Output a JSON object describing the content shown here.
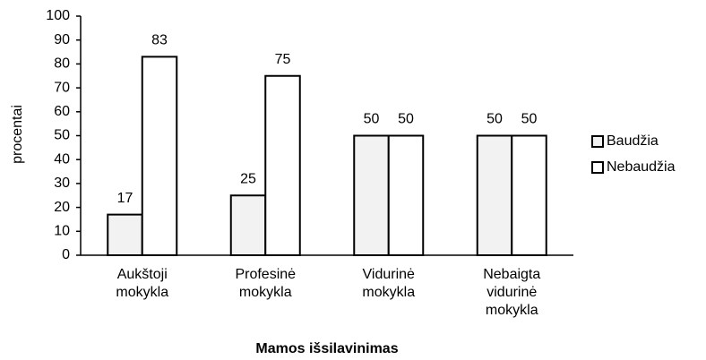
{
  "chart_data": {
    "type": "bar",
    "x_label": "Mamos išsilavinimas",
    "y_label": "procentai",
    "categories": [
      "Aukštoji mokykla",
      "Profesinė mokykla",
      "Vidurinė mokykla",
      "Nebaigta vidurinė mokykla"
    ],
    "series": [
      {
        "name": "Baudžia",
        "color": "#f2f2f2",
        "values": [
          17,
          25,
          50,
          50
        ]
      },
      {
        "name": "Nebaudžia",
        "color": "#ffffff",
        "values": [
          83,
          75,
          50,
          50
        ]
      }
    ],
    "ylim": [
      0,
      100
    ],
    "yticks": [
      0,
      10,
      20,
      30,
      40,
      50,
      60,
      70,
      80,
      90,
      100
    ],
    "grid": false,
    "legend": "right"
  }
}
